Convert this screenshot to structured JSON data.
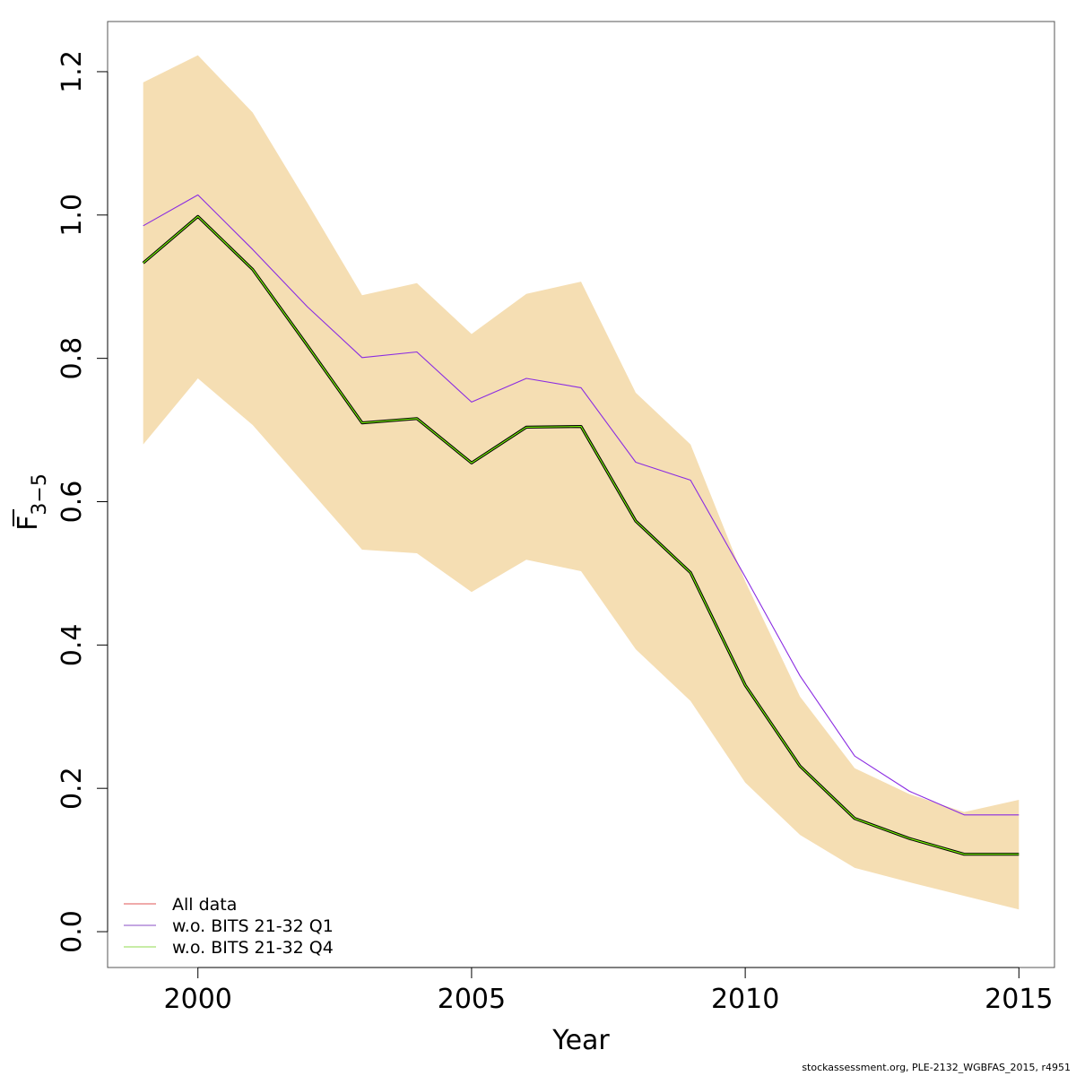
{
  "chart_data": {
    "type": "line",
    "xlabel": "Year",
    "ylabel": {
      "base": "F",
      "subscript": "3−5"
    },
    "xlim": [
      1998.35,
      2015.65
    ],
    "ylim": [
      -0.05,
      1.27
    ],
    "x_ticks": [
      2000,
      2005,
      2010,
      2015
    ],
    "y_ticks": [
      0.0,
      0.2,
      0.4,
      0.6,
      0.8,
      1.0,
      1.2
    ],
    "x_tick_labels": [
      "2000",
      "2005",
      "2010",
      "2015"
    ],
    "y_tick_labels": [
      "0.0",
      "0.2",
      "0.4",
      "0.6",
      "0.8",
      "1.0",
      "1.2"
    ],
    "x": [
      1999,
      2000,
      2001,
      2002,
      2003,
      2004,
      2005,
      2006,
      2007,
      2008,
      2009,
      2010,
      2011,
      2012,
      2013,
      2014,
      2015
    ],
    "band": {
      "color": "#F5DEB3",
      "upper": [
        1.185,
        1.223,
        1.143,
        1.017,
        0.888,
        0.905,
        0.834,
        0.89,
        0.907,
        0.752,
        0.68,
        0.489,
        0.328,
        0.228,
        0.192,
        0.167,
        0.184
      ],
      "lower": [
        0.68,
        0.772,
        0.707,
        0.62,
        0.533,
        0.528,
        0.474,
        0.519,
        0.503,
        0.394,
        0.322,
        0.208,
        0.135,
        0.089,
        0.069,
        0.05,
        0.031
      ]
    },
    "series": [
      {
        "name": "All data",
        "color": "#000000",
        "legend_color": "#E87878",
        "width": 3.2,
        "values": [
          0.933,
          0.998,
          0.924,
          0.818,
          0.71,
          0.716,
          0.654,
          0.704,
          0.705,
          0.573,
          0.501,
          0.344,
          0.231,
          0.158,
          0.13,
          0.108,
          0.108
        ]
      },
      {
        "name": "w.o. BITS 21-32 Q1",
        "color": "#8A2BE2",
        "legend_color": "#A070D0",
        "width": 1.1,
        "values": [
          0.985,
          1.028,
          0.952,
          0.872,
          0.801,
          0.809,
          0.739,
          0.772,
          0.759,
          0.655,
          0.63,
          0.495,
          0.357,
          0.245,
          0.196,
          0.163,
          0.163
        ]
      },
      {
        "name": "w.o. BITS 21-32 Q4",
        "color": "#7CFC00",
        "legend_color": "#A8E070",
        "width": 1.1,
        "values": [
          0.933,
          0.998,
          0.924,
          0.818,
          0.71,
          0.716,
          0.654,
          0.704,
          0.705,
          0.573,
          0.501,
          0.344,
          0.231,
          0.158,
          0.13,
          0.108,
          0.108
        ]
      }
    ],
    "legend": {
      "position": "bottom-left"
    }
  },
  "footer": "stockassessment.org, PLE-2132_WGBFAS_2015, r4951"
}
